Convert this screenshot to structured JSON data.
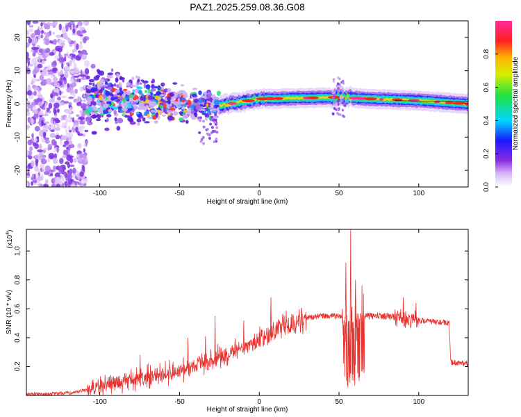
{
  "title": "PAZ1.2025.259.08.36.G08",
  "colors": {
    "snr_line": "#e8322e",
    "frame": "#000000",
    "background": "#ffffff"
  },
  "chart_data": [
    {
      "type": "heatmap",
      "title": "",
      "xlabel": "Height of straight line (km)",
      "ylabel": "Frequency (Hz)",
      "xlim": [
        -146,
        131
      ],
      "ylim": [
        -25,
        25
      ],
      "xticks": [
        -100,
        -50,
        0,
        50,
        100
      ],
      "yticks": [
        -20,
        -10,
        0,
        10,
        20
      ],
      "grid": false,
      "colorbar": {
        "label": "Normalized spectral amplitude",
        "range": [
          0.0,
          1.0
        ],
        "ticks": [
          0.0,
          0.2,
          0.4,
          0.6,
          0.8
        ],
        "tick_labels": [
          "0.0",
          "0.2",
          "0.4",
          "0.6",
          "0.8"
        ],
        "colormap": "rainbow (white-violet-blue-cyan-green-yellow-red-magenta)"
      },
      "features": {
        "noise_region_km": [
          -146,
          -108
        ],
        "scattered_region_km": [
          -108,
          -25
        ],
        "trace_region_km": [
          -25,
          131
        ],
        "trace_frequency_hz": [
          [
            -25,
            -0.5
          ],
          [
            0,
            1.5
          ],
          [
            50,
            2.0
          ],
          [
            70,
            1.5
          ],
          [
            100,
            1.0
          ],
          [
            131,
            0.0
          ]
        ]
      }
    },
    {
      "type": "line",
      "title": "",
      "xlabel": "Height of straight line (km)",
      "ylabel": "SNR (10 * v/v)",
      "y_multiplier_label": "(x10",
      "y_multiplier_exp": "4",
      "y_multiplier_close": ")",
      "xlim": [
        -146,
        131
      ],
      "ylim": [
        0,
        1.15
      ],
      "xticks": [
        -100,
        -50,
        0,
        50,
        100
      ],
      "yticks": [
        0.2,
        0.4,
        0.6,
        0.8,
        1.0
      ],
      "grid": false,
      "series": [
        {
          "x": [
            -146,
            -130,
            -115,
            -105,
            -100,
            -90,
            -80,
            -70,
            -60,
            -50,
            -40,
            -30,
            -20,
            -10,
            0,
            10,
            20,
            30,
            40,
            50,
            54,
            58,
            62,
            66,
            70,
            80,
            90,
            100,
            110,
            119,
            120,
            131
          ],
          "y": [
            0.01,
            0.01,
            0.02,
            0.05,
            0.06,
            0.08,
            0.11,
            0.13,
            0.15,
            0.17,
            0.21,
            0.24,
            0.28,
            0.33,
            0.38,
            0.45,
            0.51,
            0.54,
            0.55,
            0.55,
            0.53,
            0.5,
            0.53,
            0.55,
            0.55,
            0.55,
            0.53,
            0.52,
            0.51,
            0.5,
            0.23,
            0.22
          ],
          "spikes": [
            [
              -75,
              0.28
            ],
            [
              -45,
              0.4
            ],
            [
              -34,
              0.41
            ],
            [
              -28,
              0.55
            ],
            [
              -10,
              0.52
            ],
            [
              7,
              0.68
            ],
            [
              54,
              0.92
            ],
            [
              57,
              1.15
            ],
            [
              60,
              0.8
            ],
            [
              90,
              0.68
            ],
            [
              98,
              0.64
            ]
          ]
        }
      ]
    }
  ]
}
